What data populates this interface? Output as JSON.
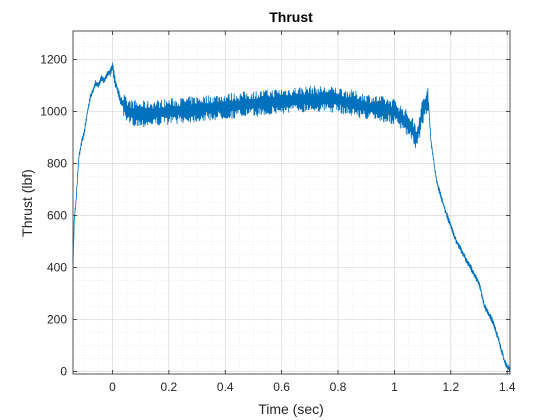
{
  "chart_data": {
    "type": "line",
    "title": "Thrust",
    "xlabel": "Time (sec)",
    "ylabel": "Thrust (lbf)",
    "xlim": [
      -0.14,
      1.41
    ],
    "ylim": [
      -10,
      1310
    ],
    "xticks": [
      0,
      0.2,
      0.4,
      0.6,
      0.8,
      1,
      1.2,
      1.4
    ],
    "xtick_labels": [
      "0",
      "0.2",
      "0.4",
      "0.6",
      "0.8",
      "1",
      "1.2",
      "1.4"
    ],
    "yticks": [
      0,
      200,
      400,
      600,
      800,
      1000,
      1200
    ],
    "ytick_labels": [
      "0",
      "200",
      "400",
      "600",
      "800",
      "1000",
      "1200"
    ],
    "grid": true,
    "minor_grid": true,
    "series": [
      {
        "color": "#0072bd",
        "noise_amplitude": 50,
        "x": [
          -0.14,
          -0.135,
          -0.13,
          -0.12,
          -0.11,
          -0.1,
          -0.09,
          -0.08,
          -0.07,
          -0.06,
          -0.05,
          -0.04,
          -0.03,
          -0.02,
          -0.01,
          0.0,
          0.01,
          0.02,
          0.03,
          0.05,
          0.1,
          0.2,
          0.3,
          0.4,
          0.5,
          0.6,
          0.7,
          0.8,
          0.9,
          1.0,
          1.05,
          1.08,
          1.1,
          1.12,
          1.13,
          1.15,
          1.18,
          1.2,
          1.22,
          1.25,
          1.28,
          1.3,
          1.32,
          1.35,
          1.37,
          1.38,
          1.39,
          1.4,
          1.41
        ],
        "y": [
          420,
          600,
          640,
          820,
          880,
          920,
          990,
          1050,
          1080,
          1110,
          1100,
          1130,
          1120,
          1140,
          1150,
          1175,
          1110,
          1080,
          1040,
          1000,
          990,
          1000,
          1010,
          1020,
          1030,
          1040,
          1050,
          1045,
          1020,
          1000,
          950,
          900,
          1000,
          1050,
          880,
          730,
          620,
          560,
          500,
          440,
          380,
          340,
          250,
          190,
          120,
          80,
          40,
          15,
          10
        ]
      }
    ]
  }
}
